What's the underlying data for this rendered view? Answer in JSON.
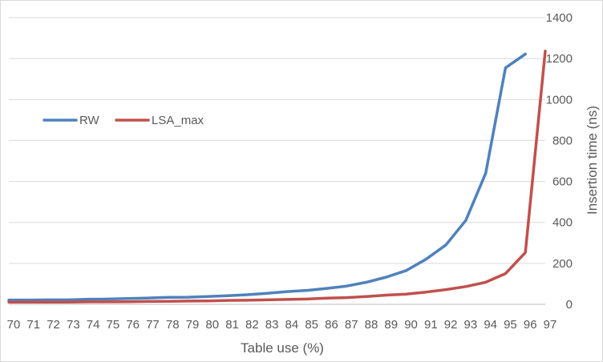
{
  "chart_data": {
    "type": "line",
    "title": "",
    "xlabel": "Table use (%)",
    "ylabel": "Insertion time (ns)",
    "x": [
      70,
      71,
      72,
      73,
      74,
      75,
      76,
      77,
      78,
      79,
      80,
      81,
      82,
      83,
      84,
      85,
      86,
      87,
      88,
      89,
      90,
      91,
      92,
      93,
      94,
      95,
      96,
      97
    ],
    "x_tick_labels": [
      "70",
      "71",
      "72",
      "73",
      "74",
      "75",
      "76",
      "77",
      "78",
      "79",
      "80",
      "81",
      "82",
      "83",
      "84",
      "85",
      "86",
      "87",
      "88",
      "89",
      "90",
      "91",
      "92",
      "93",
      "94",
      "95",
      "96",
      "97"
    ],
    "ylim": [
      0,
      1400
    ],
    "y_ticks": [
      0,
      200,
      400,
      600,
      800,
      1000,
      1200,
      1400
    ],
    "y_tick_labels": [
      "0",
      "200",
      "400",
      "600",
      "800",
      "1000",
      "1200",
      "1400"
    ],
    "y_axis_side": "right",
    "grid": true,
    "legend_position": "left, inside plot",
    "series": [
      {
        "name": "RW",
        "color": "#4f81bd",
        "x": [
          70,
          71,
          72,
          73,
          74,
          75,
          76,
          77,
          78,
          79,
          80,
          81,
          82,
          83,
          84,
          85,
          86,
          87,
          88,
          89,
          90,
          91,
          92,
          93,
          94,
          95,
          96
        ],
        "values": [
          21,
          21,
          22,
          22,
          25,
          26,
          28,
          31,
          34,
          35,
          38,
          42,
          47,
          54,
          62,
          68,
          78,
          89,
          108,
          133,
          165,
          220,
          290,
          410,
          640,
          1155,
          1222
        ]
      },
      {
        "name": "LSA_max",
        "color": "#c0504d",
        "x": [
          70,
          71,
          72,
          73,
          74,
          75,
          76,
          77,
          78,
          79,
          80,
          81,
          82,
          83,
          84,
          85,
          86,
          87,
          88,
          89,
          90,
          91,
          92,
          93,
          94,
          95,
          96,
          97
        ],
        "values": [
          11,
          11,
          11,
          11,
          12,
          12,
          13,
          14,
          15,
          16,
          17,
          19,
          20,
          22,
          24,
          26,
          30,
          33,
          38,
          45,
          50,
          60,
          72,
          87,
          108,
          150,
          253,
          1237
        ]
      }
    ]
  }
}
